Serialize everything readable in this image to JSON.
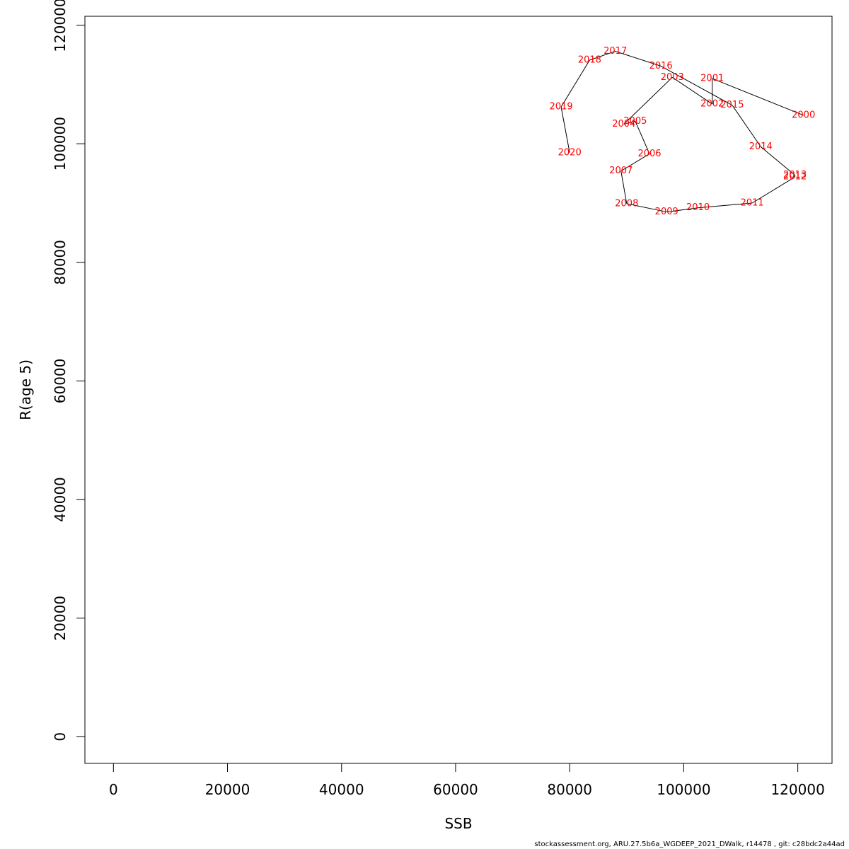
{
  "chart_data": {
    "type": "line",
    "xlabel": "SSB",
    "ylabel": "R(age 5)",
    "xlim": [
      -5000,
      126000
    ],
    "ylim": [
      -4500,
      121500
    ],
    "x_ticks": [
      0,
      20000,
      40000,
      60000,
      80000,
      100000,
      120000
    ],
    "y_ticks": [
      0,
      20000,
      40000,
      60000,
      80000,
      100000,
      120000
    ],
    "grid": false,
    "line_color": "#000000",
    "label_color": "#ff0000",
    "points": [
      {
        "label": "2000",
        "x": 121000,
        "y": 104800
      },
      {
        "label": "2001",
        "x": 105000,
        "y": 111000
      },
      {
        "label": "2002",
        "x": 105000,
        "y": 106700
      },
      {
        "label": "2003",
        "x": 98000,
        "y": 111200
      },
      {
        "label": "2004",
        "x": 89500,
        "y": 103300
      },
      {
        "label": "2005",
        "x": 91500,
        "y": 103800
      },
      {
        "label": "2006",
        "x": 94000,
        "y": 98300
      },
      {
        "label": "2007",
        "x": 89000,
        "y": 95400
      },
      {
        "label": "2008",
        "x": 90000,
        "y": 89900
      },
      {
        "label": "2009",
        "x": 97000,
        "y": 88500
      },
      {
        "label": "2010",
        "x": 102500,
        "y": 89200
      },
      {
        "label": "2011",
        "x": 112000,
        "y": 90000
      },
      {
        "label": "2012",
        "x": 119500,
        "y": 94400
      },
      {
        "label": "2013",
        "x": 119500,
        "y": 94700
      },
      {
        "label": "2014",
        "x": 113500,
        "y": 99500
      },
      {
        "label": "2015",
        "x": 108500,
        "y": 106500
      },
      {
        "label": "2016",
        "x": 96000,
        "y": 113100
      },
      {
        "label": "2017",
        "x": 88000,
        "y": 115600
      },
      {
        "label": "2018",
        "x": 83500,
        "y": 114100
      },
      {
        "label": "2019",
        "x": 78500,
        "y": 106200
      },
      {
        "label": "2020",
        "x": 80000,
        "y": 98500
      }
    ]
  },
  "footer": "stockassessment.org, ARU.27.5b6a_WGDEEP_2021_DWalk, r14478 , git: c28bdc2a44ad"
}
